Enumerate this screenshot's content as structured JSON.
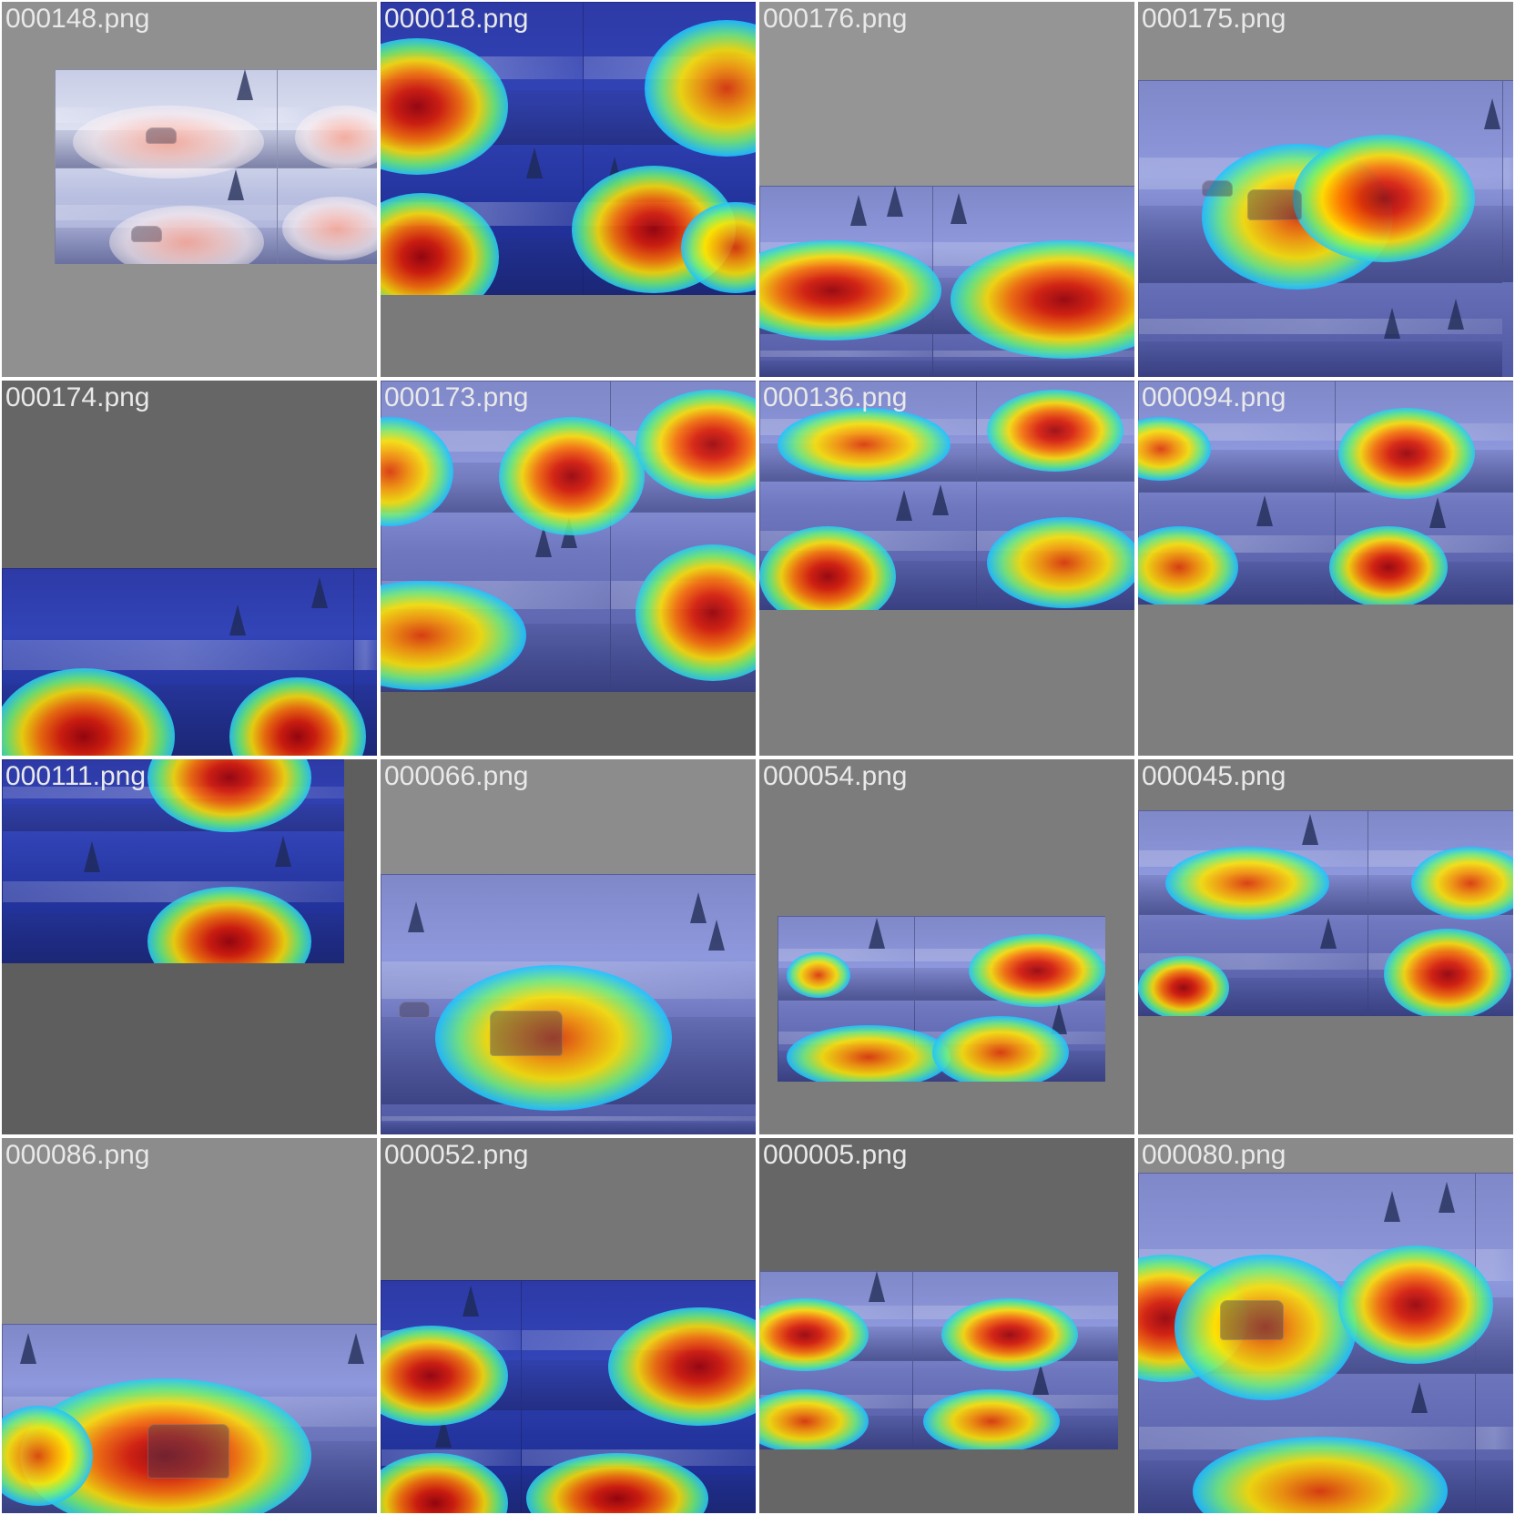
{
  "tiles": [
    {
      "filename": "000148.png"
    },
    {
      "filename": "000018.png"
    },
    {
      "filename": "000176.png"
    },
    {
      "filename": "000175.png"
    },
    {
      "filename": "000174.png"
    },
    {
      "filename": "000173.png"
    },
    {
      "filename": "000136.png"
    },
    {
      "filename": "000094.png"
    },
    {
      "filename": "000111.png"
    },
    {
      "filename": "000066.png"
    },
    {
      "filename": "000054.png"
    },
    {
      "filename": "000045.png"
    },
    {
      "filename": "000086.png"
    },
    {
      "filename": "000052.png"
    },
    {
      "filename": "000005.png"
    },
    {
      "filename": "000080.png"
    }
  ]
}
